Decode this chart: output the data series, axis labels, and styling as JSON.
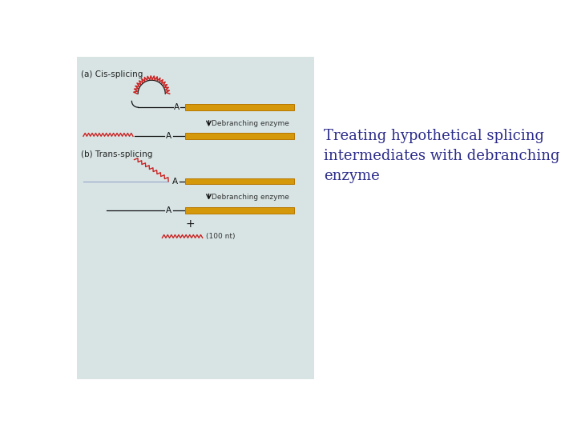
{
  "bg_color": "#d8e4e4",
  "white_bg": "#ffffff",
  "orange_bar_color": "#D4980A",
  "orange_bar_edge": "#B87800",
  "red_zigzag_color": "#CC2222",
  "black_line_color": "#111111",
  "blue_line_color": "#99AACC",
  "label_a_color": "#111111",
  "section_label_color": "#222222",
  "arrow_color": "#111111",
  "enzyme_text_color": "#333333",
  "caption_color": "#2B2B8B",
  "caption_text": "Treating hypothetical splicing\nintermediates with debranching\nenzyme",
  "caption_fontsize": 13,
  "label_a": "A",
  "label_debranch1": "Debranching enzyme",
  "label_debranch2": "Debranching enzyme",
  "label_100nt": "(100 nt)",
  "section_a_label": "(a) Cis-splicing",
  "section_b_label": "(b) Trans-splicing"
}
